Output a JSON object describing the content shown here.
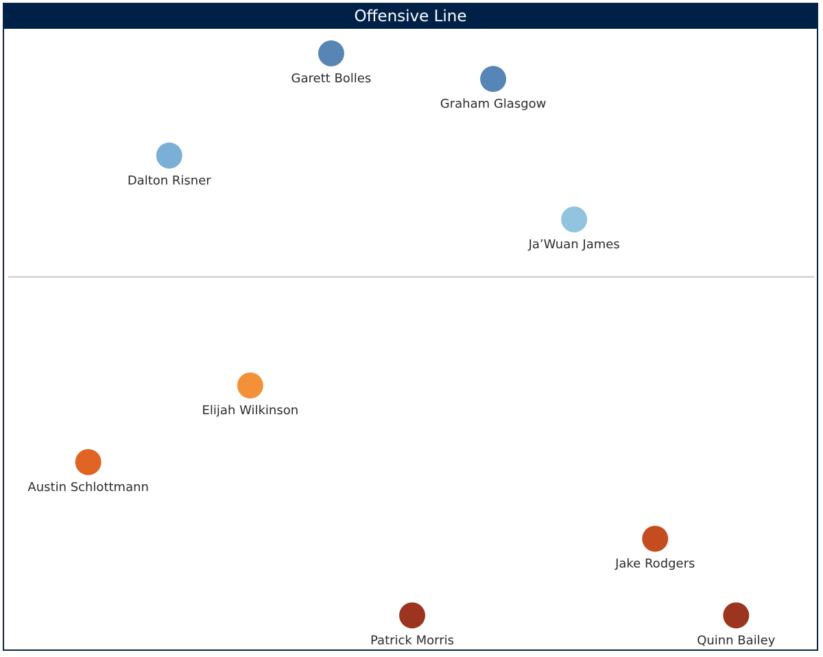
{
  "title": "Offensive Line",
  "chart_data": {
    "type": "scatter",
    "title": "Offensive Line",
    "xlabel": "",
    "ylabel": "",
    "grid": false,
    "xlim": [
      0,
      100
    ],
    "ylim": [
      0,
      100
    ],
    "divider_y": 59,
    "points": [
      {
        "name": "Garett Bolles",
        "x": 40,
        "y": 94,
        "color": "#5785b5"
      },
      {
        "name": "Graham Glasgow",
        "x": 60,
        "y": 90,
        "color": "#5785b5"
      },
      {
        "name": "Dalton Risner",
        "x": 20,
        "y": 78,
        "color": "#7bafd6"
      },
      {
        "name": "Ja’Wuan James",
        "x": 70,
        "y": 68,
        "color": "#92c4e0"
      },
      {
        "name": "Elijah Wilkinson",
        "x": 30,
        "y": 42,
        "color": "#f2913a"
      },
      {
        "name": "Austin Schlottmann",
        "x": 10,
        "y": 30,
        "color": "#e06424"
      },
      {
        "name": "Jake Rodgers",
        "x": 80,
        "y": 18,
        "color": "#c44d1f"
      },
      {
        "name": "Patrick Morris",
        "x": 50,
        "y": 6,
        "color": "#9b3520"
      },
      {
        "name": "Quinn Bailey",
        "x": 90,
        "y": 6,
        "color": "#9b3520"
      }
    ]
  }
}
